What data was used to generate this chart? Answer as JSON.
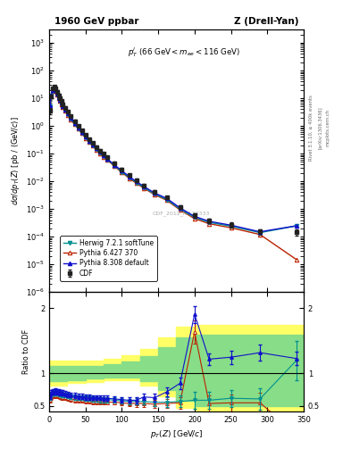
{
  "title_left": "1960 GeV ppbar",
  "title_right": "Z (Drell-Yan)",
  "annotation": "p$_T^{l}$ (66 GeV < m$_{ee}$ < 116 GeV)",
  "watermark": "CDF_2012_I1124333",
  "right_labels": [
    "Rivet 3.1.10, ≥ 400k events",
    "[arXiv:1306.3436]",
    "mcplots.cern.ch"
  ],
  "cdf_pt": [
    1,
    3,
    5,
    7,
    9,
    11,
    13,
    15,
    17,
    19,
    22,
    26,
    30,
    35,
    40,
    45,
    50,
    55,
    60,
    65,
    70,
    75,
    80,
    90,
    100,
    110,
    120,
    130,
    145,
    162,
    180,
    200,
    220,
    250,
    290,
    340
  ],
  "cdf_val": [
    3.5,
    12.0,
    22.0,
    26.0,
    22.0,
    17.0,
    13.0,
    10.0,
    7.8,
    6.2,
    4.5,
    3.2,
    2.2,
    1.5,
    1.0,
    0.68,
    0.47,
    0.33,
    0.24,
    0.175,
    0.13,
    0.098,
    0.075,
    0.045,
    0.027,
    0.017,
    0.011,
    0.0072,
    0.0042,
    0.0026,
    0.0012,
    0.00058,
    0.00038,
    0.00027,
    0.000155,
    0.00015
  ],
  "cdf_err": [
    0.8,
    2.0,
    3.0,
    3.0,
    2.5,
    2.0,
    1.5,
    1.2,
    0.9,
    0.7,
    0.5,
    0.35,
    0.24,
    0.16,
    0.11,
    0.075,
    0.052,
    0.037,
    0.027,
    0.02,
    0.015,
    0.011,
    0.0085,
    0.005,
    0.003,
    0.002,
    0.0013,
    0.0009,
    0.00055,
    0.00035,
    0.00018,
    0.0001,
    7e-05,
    5.5e-05,
    3.5e-05,
    4e-05
  ],
  "herwig_pt": [
    1,
    3,
    5,
    7,
    9,
    11,
    13,
    15,
    17,
    19,
    22,
    26,
    30,
    35,
    40,
    45,
    50,
    55,
    60,
    65,
    70,
    75,
    80,
    90,
    100,
    110,
    120,
    130,
    145,
    162,
    180,
    200,
    220,
    250,
    290,
    340
  ],
  "herwig_val": [
    5.0,
    12.5,
    19.0,
    21.5,
    18.5,
    14.0,
    10.5,
    8.2,
    6.4,
    5.1,
    3.7,
    2.6,
    1.8,
    1.2,
    0.83,
    0.56,
    0.39,
    0.27,
    0.2,
    0.145,
    0.107,
    0.08,
    0.062,
    0.037,
    0.022,
    0.014,
    0.009,
    0.006,
    0.0035,
    0.0022,
    0.001,
    0.0005,
    0.00033,
    0.00024,
    0.00014,
    0.000245
  ],
  "py6_pt": [
    1,
    3,
    5,
    7,
    9,
    11,
    13,
    15,
    17,
    19,
    22,
    26,
    30,
    35,
    40,
    45,
    50,
    55,
    60,
    65,
    70,
    75,
    80,
    90,
    100,
    110,
    120,
    130,
    145,
    162,
    180,
    200,
    220,
    250,
    290,
    340
  ],
  "py6_val": [
    4.8,
    12.0,
    18.5,
    21.0,
    18.0,
    13.5,
    10.0,
    7.8,
    6.1,
    4.9,
    3.5,
    2.5,
    1.72,
    1.15,
    0.79,
    0.54,
    0.37,
    0.26,
    0.19,
    0.138,
    0.102,
    0.077,
    0.059,
    0.035,
    0.021,
    0.013,
    0.0085,
    0.0057,
    0.0033,
    0.00205,
    0.00093,
    0.00045,
    0.000295,
    0.00021,
    0.00012,
    1.5e-05
  ],
  "py8_pt": [
    1,
    3,
    5,
    7,
    9,
    11,
    13,
    15,
    17,
    19,
    22,
    26,
    30,
    35,
    40,
    45,
    50,
    55,
    60,
    65,
    70,
    75,
    80,
    90,
    100,
    110,
    120,
    130,
    145,
    162,
    180,
    200,
    220,
    250,
    290,
    340
  ],
  "py8_val": [
    5.5,
    13.0,
    20.0,
    22.5,
    19.5,
    14.5,
    11.0,
    8.5,
    6.7,
    5.3,
    3.85,
    2.75,
    1.9,
    1.27,
    0.87,
    0.59,
    0.41,
    0.29,
    0.21,
    0.153,
    0.113,
    0.085,
    0.065,
    0.039,
    0.024,
    0.015,
    0.0098,
    0.0066,
    0.0038,
    0.0024,
    0.0011,
    0.00054,
    0.00036,
    0.00026,
    0.00015,
    0.000248
  ],
  "ratio_herwig_pt": [
    1,
    3,
    5,
    7,
    9,
    11,
    13,
    15,
    17,
    19,
    22,
    26,
    30,
    35,
    40,
    45,
    50,
    55,
    60,
    65,
    70,
    75,
    80,
    90,
    100,
    110,
    120,
    130,
    145,
    162,
    180,
    200,
    220,
    250,
    290,
    340
  ],
  "ratio_herwig_val": [
    0.63,
    0.68,
    0.7,
    0.7,
    0.71,
    0.7,
    0.7,
    0.69,
    0.68,
    0.68,
    0.67,
    0.66,
    0.65,
    0.64,
    0.63,
    0.63,
    0.62,
    0.62,
    0.61,
    0.61,
    0.6,
    0.6,
    0.6,
    0.59,
    0.58,
    0.57,
    0.57,
    0.57,
    0.56,
    0.56,
    0.57,
    0.59,
    0.59,
    0.62,
    0.61,
    1.2
  ],
  "ratio_herwig_err": [
    0.04,
    0.04,
    0.04,
    0.04,
    0.04,
    0.04,
    0.04,
    0.04,
    0.04,
    0.04,
    0.04,
    0.04,
    0.04,
    0.04,
    0.04,
    0.04,
    0.04,
    0.04,
    0.04,
    0.04,
    0.04,
    0.04,
    0.04,
    0.04,
    0.04,
    0.04,
    0.05,
    0.05,
    0.06,
    0.07,
    0.09,
    0.13,
    0.13,
    0.13,
    0.16,
    0.3
  ],
  "ratio_py6_pt": [
    1,
    3,
    5,
    7,
    9,
    11,
    13,
    15,
    17,
    19,
    22,
    26,
    30,
    35,
    40,
    45,
    50,
    55,
    60,
    65,
    70,
    75,
    80,
    90,
    100,
    110,
    120,
    130,
    145,
    162,
    180,
    200,
    220,
    250,
    290,
    340
  ],
  "ratio_py6_val": [
    0.6,
    0.64,
    0.66,
    0.66,
    0.67,
    0.66,
    0.66,
    0.65,
    0.64,
    0.64,
    0.63,
    0.62,
    0.61,
    0.6,
    0.59,
    0.59,
    0.58,
    0.58,
    0.57,
    0.57,
    0.57,
    0.57,
    0.56,
    0.56,
    0.55,
    0.54,
    0.54,
    0.54,
    0.53,
    0.54,
    0.55,
    1.64,
    0.54,
    0.55,
    0.55,
    0.075
  ],
  "ratio_py6_err": [
    0.04,
    0.04,
    0.04,
    0.04,
    0.04,
    0.04,
    0.04,
    0.04,
    0.04,
    0.04,
    0.04,
    0.04,
    0.04,
    0.04,
    0.04,
    0.04,
    0.04,
    0.04,
    0.04,
    0.04,
    0.04,
    0.04,
    0.04,
    0.04,
    0.04,
    0.04,
    0.05,
    0.05,
    0.06,
    0.07,
    0.09,
    0.18,
    0.12,
    0.13,
    0.16,
    0.06
  ],
  "ratio_py8_pt": [
    1,
    3,
    5,
    7,
    9,
    11,
    13,
    15,
    17,
    19,
    22,
    26,
    30,
    35,
    40,
    45,
    50,
    55,
    60,
    65,
    70,
    75,
    80,
    90,
    100,
    110,
    120,
    130,
    145,
    162,
    180,
    200,
    220,
    250,
    290,
    340
  ],
  "ratio_py8_val": [
    0.65,
    0.7,
    0.72,
    0.72,
    0.73,
    0.72,
    0.72,
    0.71,
    0.7,
    0.7,
    0.69,
    0.68,
    0.67,
    0.66,
    0.65,
    0.65,
    0.64,
    0.64,
    0.63,
    0.63,
    0.63,
    0.62,
    0.62,
    0.61,
    0.6,
    0.59,
    0.59,
    0.64,
    0.63,
    0.72,
    0.85,
    1.91,
    1.22,
    1.25,
    1.32,
    1.23
  ],
  "ratio_py8_err": [
    0.04,
    0.04,
    0.04,
    0.04,
    0.04,
    0.04,
    0.04,
    0.04,
    0.04,
    0.04,
    0.04,
    0.04,
    0.04,
    0.04,
    0.04,
    0.04,
    0.04,
    0.04,
    0.04,
    0.04,
    0.04,
    0.04,
    0.04,
    0.04,
    0.04,
    0.04,
    0.05,
    0.05,
    0.06,
    0.07,
    0.09,
    0.13,
    0.09,
    0.1,
    0.12,
    0.1
  ],
  "band_x": [
    0,
    25,
    50,
    75,
    100,
    125,
    150,
    175,
    200,
    250,
    300,
    350
  ],
  "band_ylo": [
    0.82,
    0.85,
    0.87,
    0.9,
    0.9,
    0.82,
    0.65,
    0.47,
    0.4,
    0.4,
    0.4,
    0.4
  ],
  "band_yhi": [
    1.2,
    1.2,
    1.2,
    1.22,
    1.28,
    1.38,
    1.55,
    1.72,
    1.75,
    1.75,
    1.75,
    1.75
  ],
  "band_g_ylo": [
    0.88,
    0.9,
    0.92,
    0.94,
    0.94,
    0.88,
    0.74,
    0.58,
    0.5,
    0.5,
    0.5,
    0.5
  ],
  "band_g_yhi": [
    1.12,
    1.12,
    1.12,
    1.14,
    1.18,
    1.26,
    1.4,
    1.56,
    1.6,
    1.6,
    1.6,
    1.6
  ],
  "colors": {
    "cdf": "#222222",
    "herwig": "#009090",
    "py6": "#bb2200",
    "py8": "#1111cc"
  },
  "ylim_main": [
    1e-06,
    3000.0
  ],
  "xlim": [
    0,
    350
  ],
  "ylim_ratio": [
    0.42,
    2.25
  ]
}
